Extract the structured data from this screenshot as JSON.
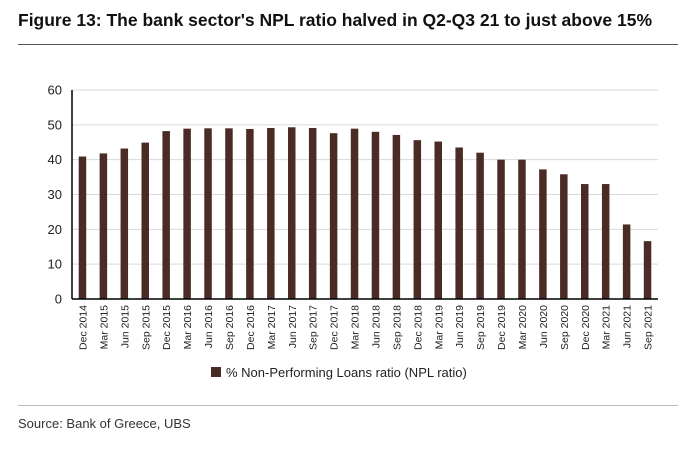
{
  "title": "Figure 13: The bank sector's NPL ratio halved in Q2-Q3 21 to just above 15%",
  "source": "Source: Bank of Greece, UBS",
  "colors": {
    "bar": "#4a2b26",
    "grid": "#d9d9d9",
    "axis": "#000000"
  },
  "chart_data": {
    "type": "bar",
    "categories": [
      "Dec 2014",
      "Mar 2015",
      "Jun 2015",
      "Sep 2015",
      "Dec 2015",
      "Mar 2016",
      "Jun 2016",
      "Sep 2016",
      "Dec 2016",
      "Mar 2017",
      "Jun 2017",
      "Sep 2017",
      "Dec 2017",
      "Mar 2018",
      "Jun 2018",
      "Sep 2018",
      "Dec 2018",
      "Mar 2019",
      "Jun 2019",
      "Sep 2019",
      "Dec 2019",
      "Mar 2020",
      "Jun 2020",
      "Sep 2020",
      "Dec 2020",
      "Mar 2021",
      "Jun 2021",
      "Sep 2021"
    ],
    "series": [
      {
        "name": "% Non-Performing Loans ratio (NPL ratio)",
        "values": [
          40.9,
          41.8,
          43.2,
          44.9,
          48.2,
          48.9,
          49.0,
          49.0,
          48.8,
          49.1,
          49.3,
          49.1,
          47.6,
          48.9,
          48.0,
          47.1,
          45.6,
          45.2,
          43.5,
          42.0,
          40.0,
          40.0,
          37.2,
          35.8,
          33.0,
          33.0,
          21.4,
          16.6
        ]
      }
    ],
    "ylim": [
      0,
      60
    ],
    "yticks": [
      0,
      10,
      20,
      30,
      40,
      50,
      60
    ],
    "grid": true,
    "legend": "bottom"
  }
}
